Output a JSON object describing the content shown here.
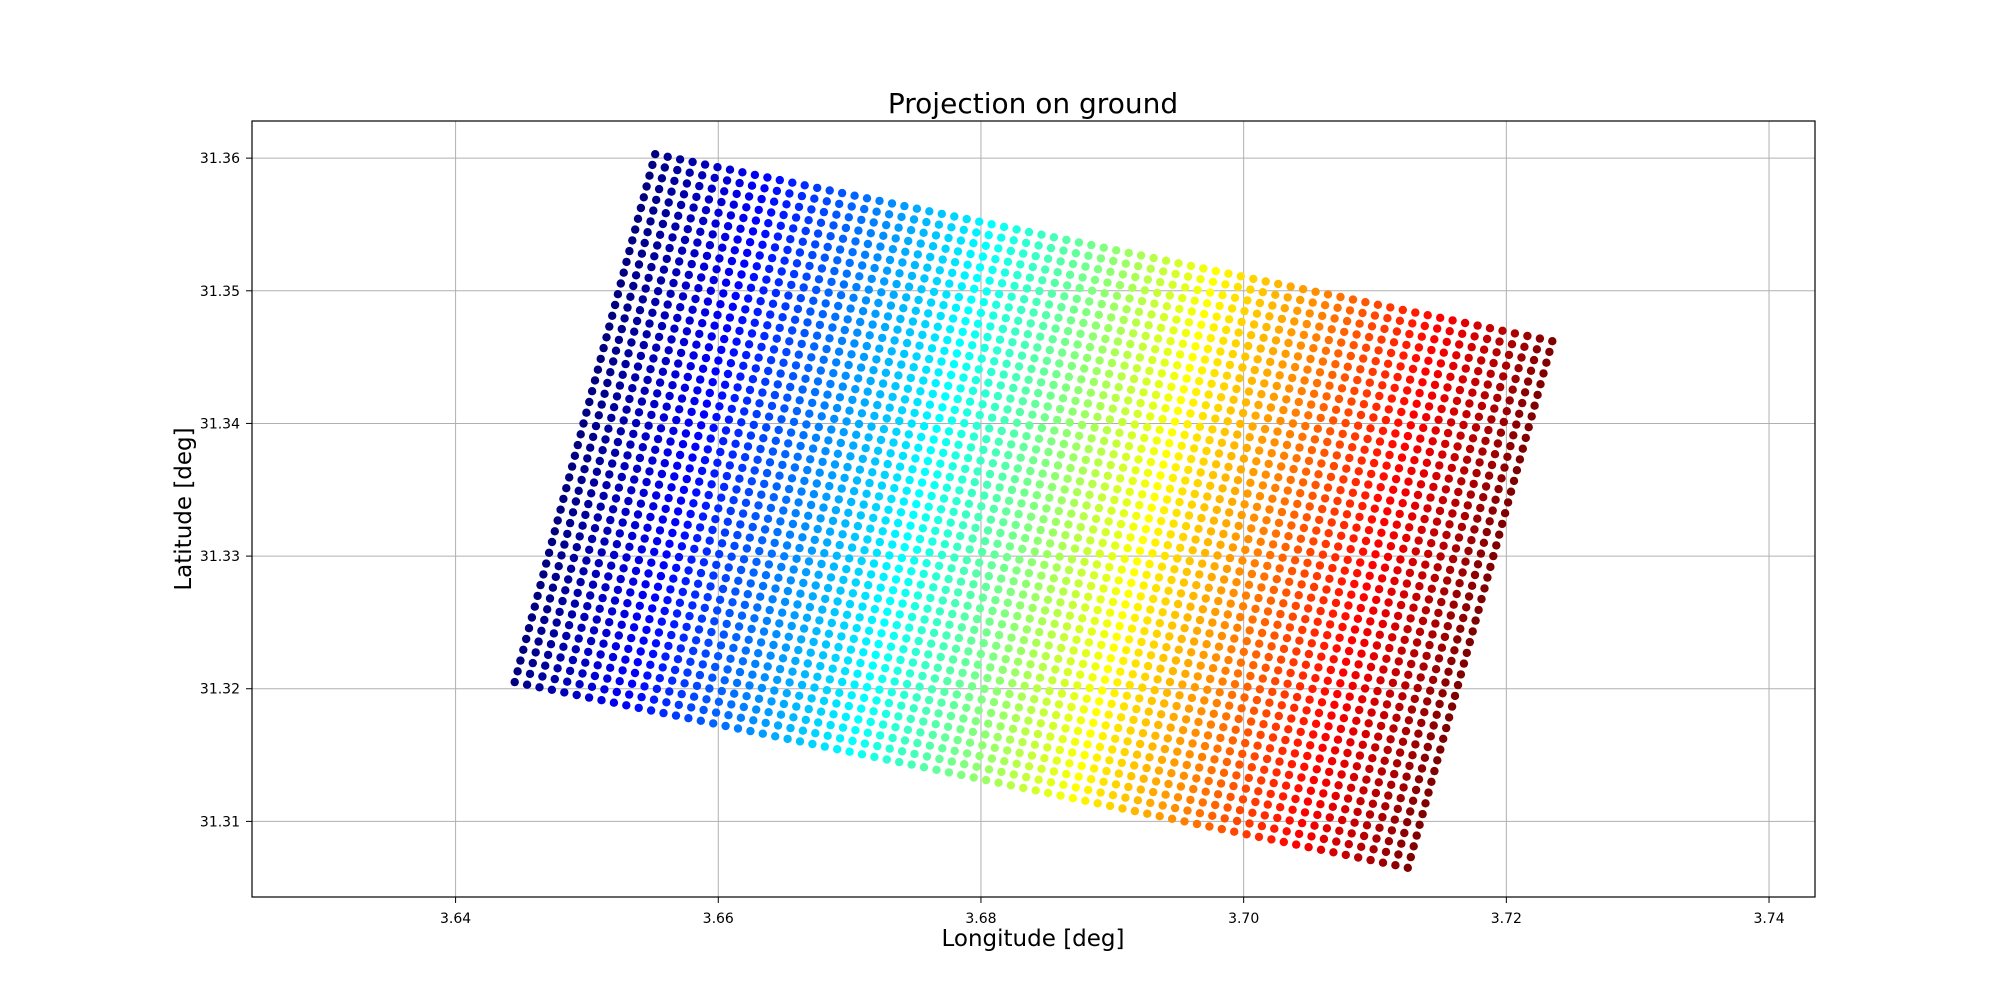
{
  "chart_data": {
    "type": "scatter",
    "title": "Projection on ground",
    "xlabel": "Longitude [deg]",
    "ylabel": "Latitude [deg]",
    "xlim": [
      3.6245,
      3.7435
    ],
    "ylim": [
      31.3043,
      31.3628
    ],
    "xticks": [
      3.64,
      3.66,
      3.68,
      3.7,
      3.72,
      3.74
    ],
    "xtick_labels": [
      "3.64",
      "3.66",
      "3.68",
      "3.70",
      "3.72",
      "3.74"
    ],
    "yticks": [
      31.31,
      31.32,
      31.33,
      31.34,
      31.35,
      31.36
    ],
    "ytick_labels": [
      "31.31",
      "31.32",
      "31.33",
      "31.34",
      "31.35",
      "31.36"
    ],
    "grid": true,
    "colormap": "jet",
    "marker_color_encoding": "colour runs from blue (west) through cyan, green, yellow and orange to dark red (east)",
    "footprint": {
      "corners": [
        {
          "lon": 3.6552,
          "lat": 31.3603
        },
        {
          "lon": 3.7235,
          "lat": 31.3462
        },
        {
          "lon": 3.7125,
          "lat": 31.3065
        },
        {
          "lon": 3.6445,
          "lat": 31.3205
        }
      ],
      "columns": 73,
      "rows": 50
    }
  }
}
